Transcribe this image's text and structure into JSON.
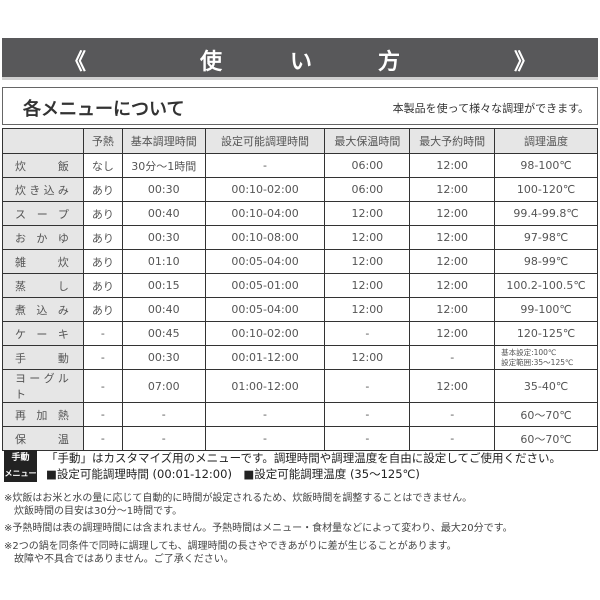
{
  "banner": {
    "left": "《",
    "c1": "使",
    "c2": "い",
    "c3": "方",
    "right": "》"
  },
  "section": {
    "title": "各メニューについて",
    "subtitle": "本製品を使って様々な調理ができます。"
  },
  "table": {
    "headers": [
      "",
      "予熱",
      "基本調理時間",
      "設定可能調理時間",
      "最大保温時間",
      "最大予約時間",
      "調理温度"
    ],
    "rows": [
      [
        "炊飯",
        "なし",
        "30分〜1時間",
        "-",
        "06:00",
        "12:00",
        "98-100℃"
      ],
      [
        "炊き込み",
        "あり",
        "00:30",
        "00:10-02:00",
        "06:00",
        "12:00",
        "100-120℃"
      ],
      [
        "スープ",
        "あり",
        "00:40",
        "00:10-04:00",
        "12:00",
        "12:00",
        "99.4-99.8℃"
      ],
      [
        "おかゆ",
        "あり",
        "00:30",
        "00:10-08:00",
        "12:00",
        "12:00",
        "97-98℃"
      ],
      [
        "雑炊",
        "あり",
        "01:10",
        "00:05-04:00",
        "12:00",
        "12:00",
        "98-99℃"
      ],
      [
        "蒸し",
        "あり",
        "00:15",
        "00:05-01:00",
        "12:00",
        "12:00",
        "100.2-100.5℃"
      ],
      [
        "煮込み",
        "あり",
        "00:40",
        "00:05-04:00",
        "12:00",
        "12:00",
        "99-100℃"
      ],
      [
        "ケーキ",
        "-",
        "00:45",
        "00:10-02:00",
        "-",
        "12:00",
        "120-125℃"
      ],
      [
        "手動",
        "-",
        "00:30",
        "00:01-12:00",
        "12:00",
        "-",
        "基本設定:100℃\n設定範囲:35〜125℃"
      ],
      [
        "ヨーグルト",
        "-",
        "07:00",
        "01:00-12:00",
        "-",
        "12:00",
        "35-40℃"
      ],
      [
        "再加熱",
        "-",
        "-",
        "-",
        "-",
        "-",
        "60〜70℃"
      ],
      [
        "保温",
        "-",
        "-",
        "-",
        "-",
        "-",
        "60〜70℃"
      ]
    ]
  },
  "manual": {
    "badge1": "手動",
    "badge2": "メニュー",
    "line1": "「手動」はカスタマイズ用のメニューです。調理時間や調理温度を自由に設定してご使用ください。",
    "line2": "■設定可能調理時間 (00:01-12:00)　■設定可能調理温度 (35〜125℃)"
  },
  "notes": [
    "※炊飯はお米と水の量に応じて自動的に時間が設定されるため、炊飯時間を調整することはできません。",
    "　炊飯時間の目安は30分〜1時間です。",
    "※予熱時間は表の調理時間には含まれません。予熱時間はメニュー・食材量などによって変わり、最大20分です。",
    "※2つの鍋を同条件で同時に調理しても、調理時間の長さやできあがりに差が生じることがあります。",
    "　故障や不具合ではありません。ご了承ください。"
  ]
}
